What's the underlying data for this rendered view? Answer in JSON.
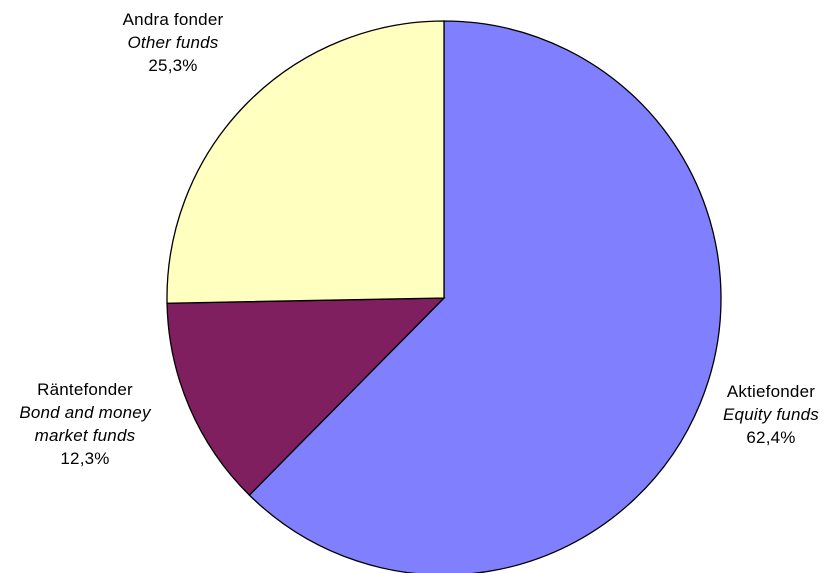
{
  "chart_data": {
    "type": "pie",
    "title": "",
    "slices": [
      {
        "label": "Aktiefonder",
        "label_en": "Equity funds",
        "value": 62.4,
        "value_label": "62,4%",
        "color": "#8080ff"
      },
      {
        "label": "Räntefonder",
        "label_en_lines": [
          "Bond and money",
          "market funds"
        ],
        "value": 12.3,
        "value_label": "12,3%",
        "color": "#7f1f5f"
      },
      {
        "label": "Andra fonder",
        "label_en": "Other funds",
        "value": 25.3,
        "value_label": "25,3%",
        "color": "#ffffc0"
      }
    ],
    "start_angle": "12 o'clock",
    "direction": "clockwise",
    "legend": "none"
  }
}
